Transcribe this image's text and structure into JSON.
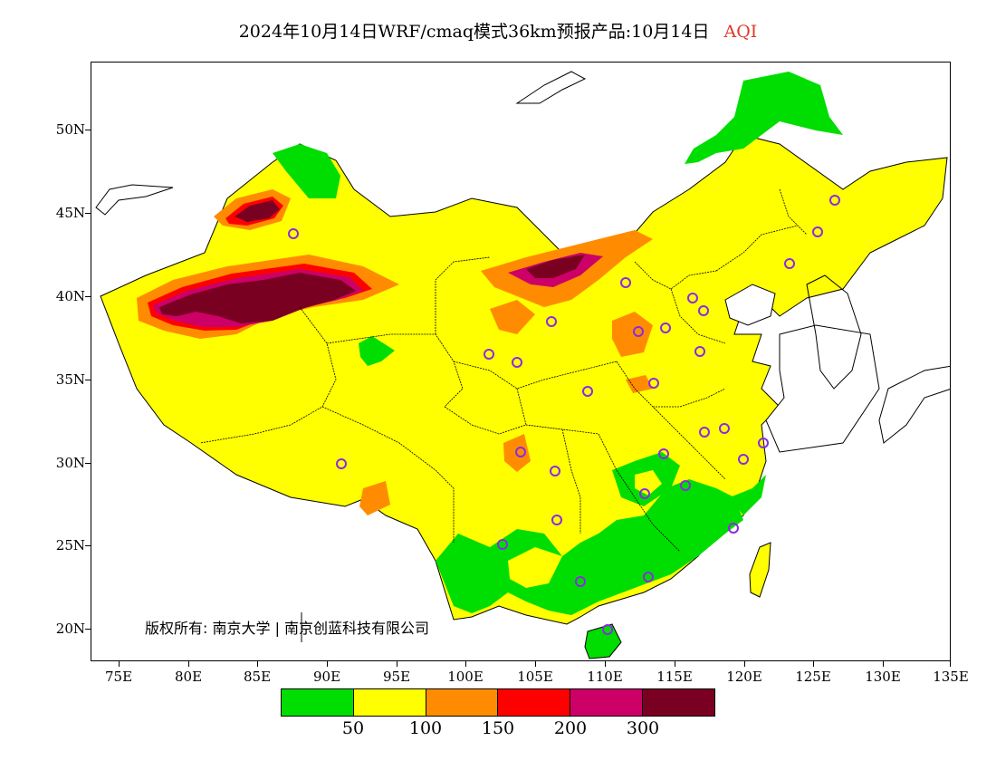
{
  "title": {
    "text": "2024年10月14日WRF/cmaq模式36km预报产品:10月14日",
    "variable": "AQI"
  },
  "map": {
    "lat_labels": [
      "50N",
      "45N",
      "40N",
      "35N",
      "30N",
      "25N",
      "20N"
    ],
    "lon_labels": [
      "75E",
      "80E",
      "85E",
      "90E",
      "95E",
      "100E",
      "105E",
      "110E",
      "115E",
      "120E",
      "125E",
      "130E",
      "135E"
    ],
    "copyright": "版权所有: 南京大学 | 南京创蓝科技有限公司"
  },
  "legend": {
    "colors": [
      "#00dd00",
      "#ffff00",
      "#ff8c00",
      "#ff0000",
      "#cc0066",
      "#7a0022"
    ],
    "labels": [
      "50",
      "100",
      "150",
      "200",
      "300"
    ]
  }
}
